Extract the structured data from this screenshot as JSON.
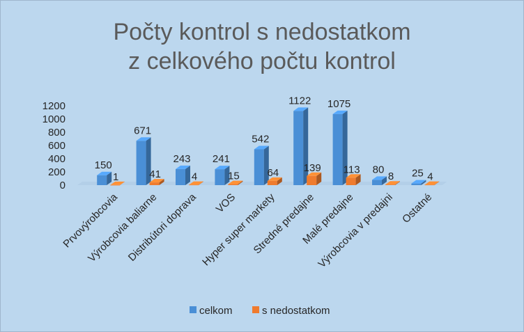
{
  "chart_data": {
    "type": "bar",
    "title_lines": [
      "Počty kontrol s nedostatkom",
      "z celkového počtu kontrol"
    ],
    "categories": [
      "Prvovýrobcovia",
      "Výrobcovia baliarne",
      "Distribútori doprava",
      "VOS",
      "Hyper super markety",
      "Stredné predajne",
      "Malé predajne",
      "Výrobcovia v predajni",
      "Ostatné"
    ],
    "series": [
      {
        "name": "celkom",
        "values": [
          150,
          671,
          243,
          241,
          542,
          1122,
          1075,
          80,
          25
        ],
        "color": "#4a8fd6"
      },
      {
        "name": "s nedostatkom",
        "values": [
          1,
          41,
          4,
          15,
          64,
          139,
          113,
          8,
          4
        ],
        "color": "#ef7b2e"
      }
    ],
    "ylim": [
      0,
      1200
    ],
    "yticks": [
      "0",
      "200",
      "400",
      "600",
      "800",
      "1000",
      "1200"
    ],
    "grid": false,
    "legend": "bottom",
    "chart_style": "3d-column"
  }
}
